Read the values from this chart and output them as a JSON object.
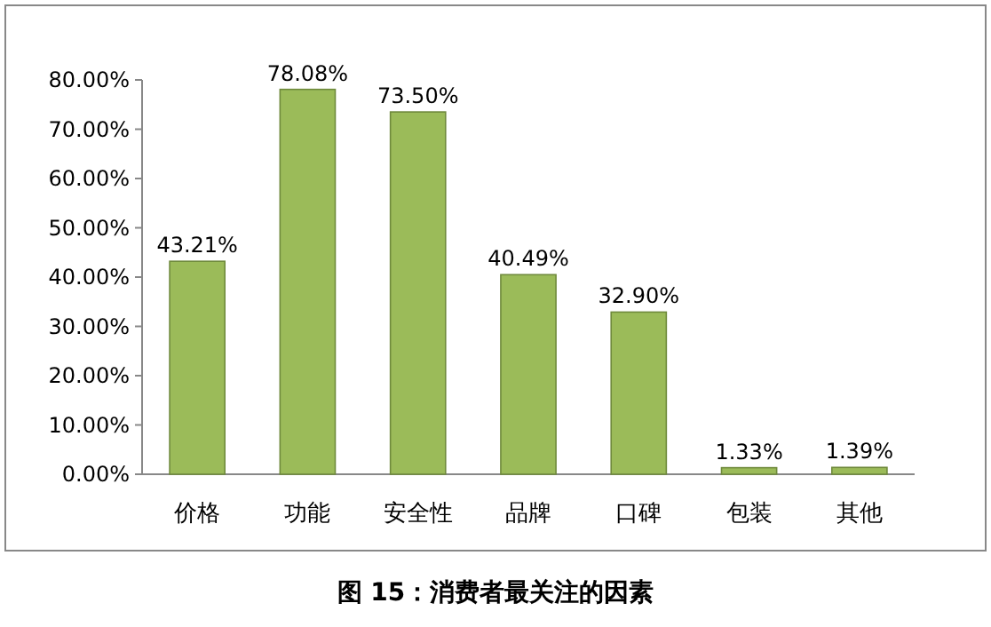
{
  "chart_data": {
    "type": "bar",
    "title": "图 15：消费者最关注的因素",
    "categories": [
      "价格",
      "功能",
      "安全性",
      "品牌",
      "口碑",
      "包装",
      "其他"
    ],
    "values": [
      43.21,
      78.08,
      73.5,
      40.49,
      32.9,
      1.33,
      1.39
    ],
    "value_labels": [
      "43.21%",
      "78.08%",
      "73.50%",
      "40.49%",
      "32.90%",
      "1.33%",
      "1.39%"
    ],
    "color": "#9bbb59",
    "ylim": [
      0,
      80
    ],
    "yticks": [
      {
        "value": 0,
        "label": "0.00%"
      },
      {
        "value": 10,
        "label": "10.00%"
      },
      {
        "value": 20,
        "label": "20.00%"
      },
      {
        "value": 30,
        "label": "30.00%"
      },
      {
        "value": 40,
        "label": "40.00%"
      },
      {
        "value": 50,
        "label": "50.00%"
      },
      {
        "value": 60,
        "label": "60.00%"
      },
      {
        "value": 70,
        "label": "70.00%"
      },
      {
        "value": 80,
        "label": "80.00%"
      }
    ],
    "grid": false
  }
}
